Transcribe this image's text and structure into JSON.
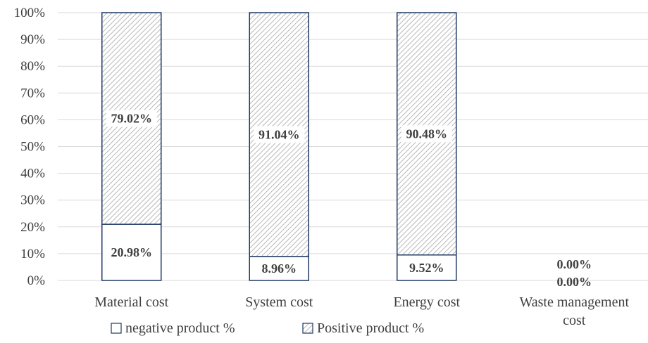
{
  "chart_data": {
    "type": "bar",
    "stacked": true,
    "percent_stacked": true,
    "categories": [
      "Material cost",
      "System cost",
      "Energy cost",
      "Waste management cost"
    ],
    "series": [
      {
        "name": "negative product %",
        "values": [
          20.98,
          8.96,
          9.52,
          0.0
        ],
        "labels": [
          "20.98%",
          "8.96%",
          "9.52%",
          "0.00%"
        ],
        "fill": "#ffffff",
        "pattern": "none"
      },
      {
        "name": "Positive product %",
        "values": [
          79.02,
          91.04,
          90.48,
          0.0
        ],
        "labels": [
          "79.02%",
          "91.04%",
          "90.48%",
          "0.00%"
        ],
        "fill": "#ffffff",
        "pattern": "diagonal-hatch"
      }
    ],
    "ylim": [
      0,
      100
    ],
    "yticks": [
      "0%",
      "10%",
      "20%",
      "30%",
      "40%",
      "50%",
      "60%",
      "70%",
      "80%",
      "90%",
      "100%"
    ],
    "grid": true,
    "legend_position": "bottom",
    "colors": {
      "outline": "#1f3864",
      "hatch": "#a6a6a6",
      "grid": "#d9d9d9",
      "text": "#404040"
    }
  }
}
